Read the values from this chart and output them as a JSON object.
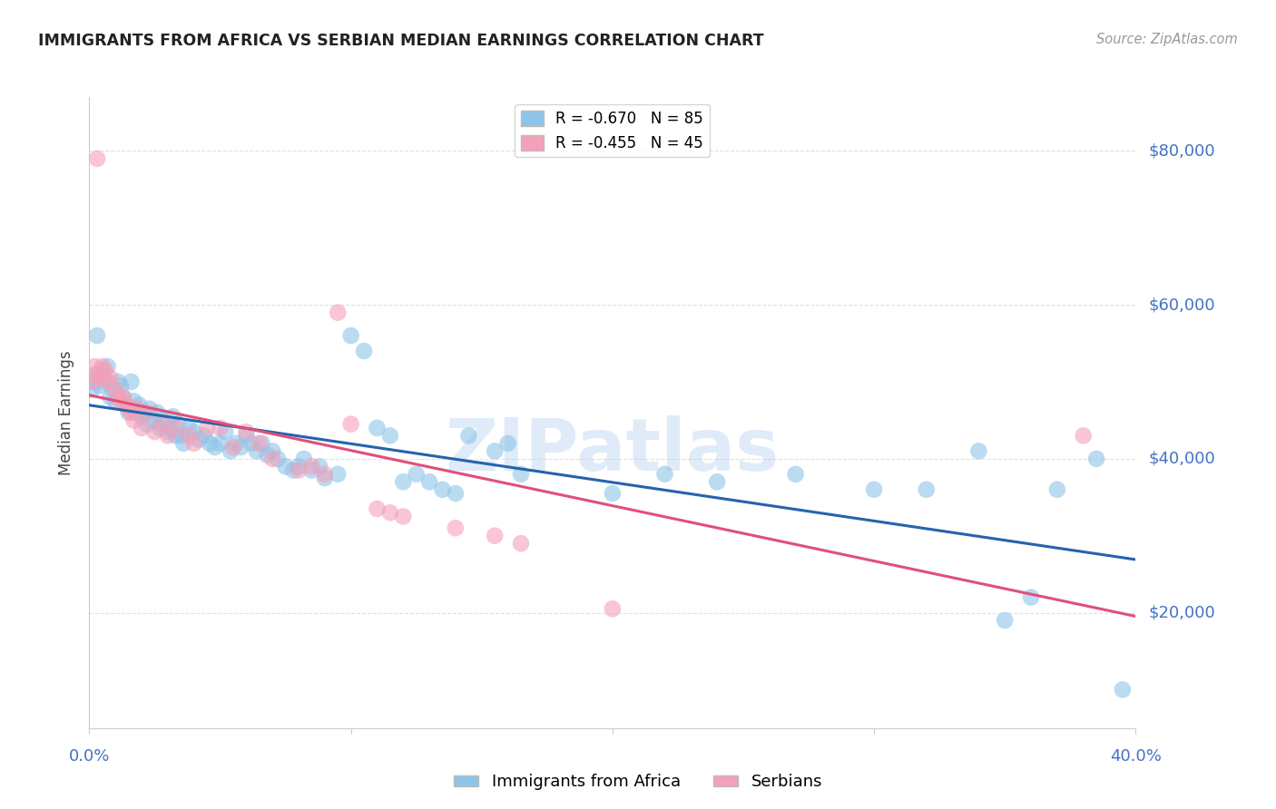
{
  "title": "IMMIGRANTS FROM AFRICA VS SERBIAN MEDIAN EARNINGS CORRELATION CHART",
  "source": "Source: ZipAtlas.com",
  "ylabel": "Median Earnings",
  "ytick_values": [
    20000,
    40000,
    60000,
    80000
  ],
  "ymin": 5000,
  "ymax": 87000,
  "xmin": 0.0,
  "xmax": 0.4,
  "legend_entries": [
    {
      "label": "R = -0.670   N = 85",
      "color": "#8ec4e8"
    },
    {
      "label": "R = -0.455   N = 45",
      "color": "#f4a0b8"
    }
  ],
  "legend_bottom": [
    "Immigrants from Africa",
    "Serbians"
  ],
  "blue_scatter": [
    [
      0.001,
      49000
    ],
    [
      0.002,
      50000
    ],
    [
      0.003,
      51000
    ],
    [
      0.003,
      56000
    ],
    [
      0.004,
      49500
    ],
    [
      0.005,
      51500
    ],
    [
      0.006,
      50000
    ],
    [
      0.007,
      52000
    ],
    [
      0.008,
      48000
    ],
    [
      0.009,
      49000
    ],
    [
      0.01,
      47500
    ],
    [
      0.011,
      50000
    ],
    [
      0.012,
      49500
    ],
    [
      0.013,
      48000
    ],
    [
      0.014,
      47000
    ],
    [
      0.015,
      46000
    ],
    [
      0.016,
      50000
    ],
    [
      0.017,
      47500
    ],
    [
      0.018,
      46000
    ],
    [
      0.019,
      47000
    ],
    [
      0.02,
      45500
    ],
    [
      0.021,
      46000
    ],
    [
      0.022,
      44500
    ],
    [
      0.023,
      46500
    ],
    [
      0.025,
      45000
    ],
    [
      0.026,
      46000
    ],
    [
      0.027,
      44000
    ],
    [
      0.028,
      45000
    ],
    [
      0.03,
      43500
    ],
    [
      0.031,
      44000
    ],
    [
      0.032,
      45500
    ],
    [
      0.033,
      43000
    ],
    [
      0.034,
      44500
    ],
    [
      0.035,
      43000
    ],
    [
      0.036,
      42000
    ],
    [
      0.038,
      44000
    ],
    [
      0.04,
      43500
    ],
    [
      0.042,
      42500
    ],
    [
      0.044,
      43000
    ],
    [
      0.046,
      42000
    ],
    [
      0.048,
      41500
    ],
    [
      0.05,
      42000
    ],
    [
      0.052,
      43500
    ],
    [
      0.054,
      41000
    ],
    [
      0.056,
      42000
    ],
    [
      0.058,
      41500
    ],
    [
      0.06,
      43000
    ],
    [
      0.062,
      42000
    ],
    [
      0.064,
      41000
    ],
    [
      0.066,
      42000
    ],
    [
      0.068,
      40500
    ],
    [
      0.07,
      41000
    ],
    [
      0.072,
      40000
    ],
    [
      0.075,
      39000
    ],
    [
      0.078,
      38500
    ],
    [
      0.08,
      39000
    ],
    [
      0.082,
      40000
    ],
    [
      0.085,
      38500
    ],
    [
      0.088,
      39000
    ],
    [
      0.09,
      37500
    ],
    [
      0.095,
      38000
    ],
    [
      0.1,
      56000
    ],
    [
      0.105,
      54000
    ],
    [
      0.11,
      44000
    ],
    [
      0.115,
      43000
    ],
    [
      0.12,
      37000
    ],
    [
      0.125,
      38000
    ],
    [
      0.13,
      37000
    ],
    [
      0.135,
      36000
    ],
    [
      0.14,
      35500
    ],
    [
      0.145,
      43000
    ],
    [
      0.155,
      41000
    ],
    [
      0.16,
      42000
    ],
    [
      0.165,
      38000
    ],
    [
      0.2,
      35500
    ],
    [
      0.22,
      38000
    ],
    [
      0.24,
      37000
    ],
    [
      0.27,
      38000
    ],
    [
      0.3,
      36000
    ],
    [
      0.32,
      36000
    ],
    [
      0.34,
      41000
    ],
    [
      0.35,
      19000
    ],
    [
      0.36,
      22000
    ],
    [
      0.37,
      36000
    ],
    [
      0.385,
      40000
    ],
    [
      0.395,
      10000
    ]
  ],
  "pink_scatter": [
    [
      0.001,
      50000
    ],
    [
      0.002,
      52000
    ],
    [
      0.003,
      51000
    ],
    [
      0.003,
      79000
    ],
    [
      0.004,
      50500
    ],
    [
      0.005,
      52000
    ],
    [
      0.006,
      51500
    ],
    [
      0.007,
      50000
    ],
    [
      0.008,
      50500
    ],
    [
      0.01,
      49000
    ],
    [
      0.011,
      48000
    ],
    [
      0.012,
      47500
    ],
    [
      0.013,
      48000
    ],
    [
      0.014,
      47000
    ],
    [
      0.015,
      46500
    ],
    [
      0.016,
      46000
    ],
    [
      0.017,
      45000
    ],
    [
      0.018,
      46500
    ],
    [
      0.02,
      44000
    ],
    [
      0.022,
      46000
    ],
    [
      0.025,
      43500
    ],
    [
      0.028,
      44500
    ],
    [
      0.03,
      43000
    ],
    [
      0.033,
      44000
    ],
    [
      0.038,
      43000
    ],
    [
      0.04,
      42000
    ],
    [
      0.045,
      44000
    ],
    [
      0.05,
      44000
    ],
    [
      0.055,
      41500
    ],
    [
      0.06,
      43500
    ],
    [
      0.065,
      42000
    ],
    [
      0.07,
      40000
    ],
    [
      0.08,
      38500
    ],
    [
      0.085,
      39000
    ],
    [
      0.09,
      38000
    ],
    [
      0.095,
      59000
    ],
    [
      0.1,
      44500
    ],
    [
      0.11,
      33500
    ],
    [
      0.115,
      33000
    ],
    [
      0.12,
      32500
    ],
    [
      0.14,
      31000
    ],
    [
      0.155,
      30000
    ],
    [
      0.165,
      29000
    ],
    [
      0.2,
      20500
    ],
    [
      0.38,
      43000
    ]
  ],
  "blue_color": "#8ec4e8",
  "pink_color": "#f4a0b8",
  "blue_line_color": "#2563ae",
  "pink_line_color": "#e0507a",
  "background_color": "#ffffff",
  "grid_color": "#e0e0e0",
  "title_color": "#222222",
  "axis_label_color": "#444444",
  "right_tick_color": "#4472c4",
  "bottom_tick_color": "#4472c4",
  "watermark_color": "#b8d4f0",
  "watermark_text": "ZIPatlas"
}
